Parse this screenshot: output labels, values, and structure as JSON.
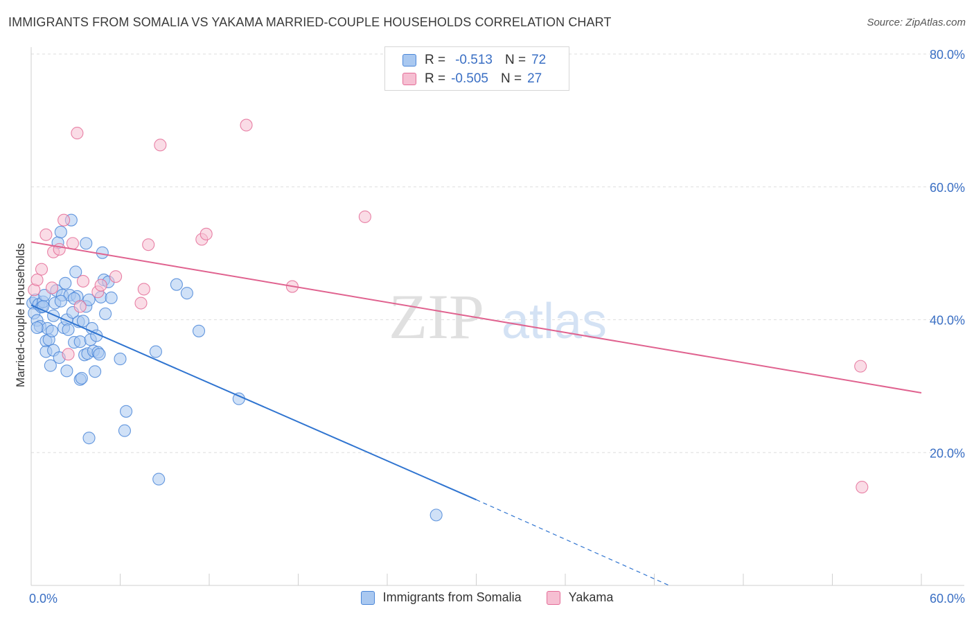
{
  "title": "IMMIGRANTS FROM SOMALIA VS YAKAMA MARRIED-COUPLE HOUSEHOLDS CORRELATION CHART",
  "source": "Source: ZipAtlas.com",
  "watermark": {
    "zip": "ZIP",
    "atlas": "atlas"
  },
  "legend": {
    "series1": {
      "r_label": "R =",
      "r_value": "-0.513",
      "n_label": "N =",
      "n_value": "72"
    },
    "series2": {
      "r_label": "R =",
      "r_value": "-0.505",
      "n_label": "N =",
      "n_value": "27"
    }
  },
  "bottom_legend": {
    "series1": "Immigrants from Somalia",
    "series2": "Yakama"
  },
  "colors": {
    "blue": "#4a86d8",
    "blue_fill": "#a9c8f0",
    "pink": "#e46c97",
    "pink_fill": "#f6bfd2",
    "tick_text": "#3a6fc4"
  },
  "chart_data": {
    "type": "scatter",
    "title": "IMMIGRANTS FROM SOMALIA VS YAKAMA MARRIED-COUPLE HOUSEHOLDS CORRELATION CHART",
    "xlabel": "",
    "ylabel": "Married-couple Households",
    "xlim": [
      0,
      60
    ],
    "ylim": [
      0,
      80
    ],
    "x_tick_labels": [
      "0.0%",
      "60.0%"
    ],
    "y_ticks": [
      20,
      40,
      60,
      80
    ],
    "y_tick_labels": [
      "20.0%",
      "40.0%",
      "60.0%",
      "80.0%"
    ],
    "series": [
      {
        "name": "Immigrants from Somalia",
        "color": "#4a86d8",
        "r": -0.513,
        "n": 72,
        "trend": {
          "x0": 0,
          "y0": 42.2,
          "x1": 30,
          "y1": 12.9,
          "dash_to_x": 43,
          "dash_to_y": 0
        },
        "points": [
          [
            0.1,
            42.5
          ],
          [
            0.2,
            41.0
          ],
          [
            0.3,
            43.0
          ],
          [
            0.4,
            39.9
          ],
          [
            0.5,
            42.3
          ],
          [
            0.6,
            39.0
          ],
          [
            0.7,
            41.9
          ],
          [
            0.8,
            42.7
          ],
          [
            0.9,
            43.7
          ],
          [
            1.0,
            36.8
          ],
          [
            1.0,
            35.2
          ],
          [
            1.1,
            38.7
          ],
          [
            1.2,
            37.0
          ],
          [
            1.3,
            33.1
          ],
          [
            1.4,
            38.3
          ],
          [
            1.5,
            35.4
          ],
          [
            1.6,
            42.5
          ],
          [
            1.7,
            44.4
          ],
          [
            1.8,
            51.6
          ],
          [
            1.9,
            34.3
          ],
          [
            2.0,
            53.2
          ],
          [
            2.1,
            43.7
          ],
          [
            2.2,
            38.8
          ],
          [
            2.3,
            45.5
          ],
          [
            2.4,
            32.3
          ],
          [
            2.4,
            40.0
          ],
          [
            2.5,
            38.5
          ],
          [
            2.6,
            43.7
          ],
          [
            2.7,
            55.0
          ],
          [
            2.8,
            41.1
          ],
          [
            2.9,
            36.6
          ],
          [
            3.0,
            47.2
          ],
          [
            3.1,
            43.5
          ],
          [
            3.2,
            39.7
          ],
          [
            3.3,
            36.7
          ],
          [
            3.3,
            31.0
          ],
          [
            3.4,
            31.2
          ],
          [
            3.5,
            39.8
          ],
          [
            3.6,
            34.7
          ],
          [
            3.7,
            42.0
          ],
          [
            3.7,
            51.5
          ],
          [
            3.8,
            34.9
          ],
          [
            3.9,
            43.0
          ],
          [
            3.9,
            22.2
          ],
          [
            4.0,
            37.0
          ],
          [
            4.1,
            38.7
          ],
          [
            4.2,
            35.3
          ],
          [
            4.3,
            32.2
          ],
          [
            4.4,
            37.6
          ],
          [
            4.5,
            35.1
          ],
          [
            4.6,
            34.8
          ],
          [
            4.7,
            43.4
          ],
          [
            4.8,
            50.1
          ],
          [
            4.9,
            46.0
          ],
          [
            5.0,
            40.9
          ],
          [
            5.2,
            45.7
          ],
          [
            5.4,
            43.3
          ],
          [
            6.0,
            34.1
          ],
          [
            6.3,
            23.3
          ],
          [
            6.4,
            26.2
          ],
          [
            8.4,
            35.2
          ],
          [
            8.6,
            16.0
          ],
          [
            9.8,
            45.3
          ],
          [
            10.5,
            44.0
          ],
          [
            11.3,
            38.3
          ],
          [
            14.0,
            28.1
          ],
          [
            27.3,
            10.6
          ],
          [
            0.4,
            38.8
          ],
          [
            0.8,
            42.0
          ],
          [
            1.5,
            40.6
          ],
          [
            2.0,
            42.8
          ],
          [
            2.9,
            43.2
          ]
        ]
      },
      {
        "name": "Yakama",
        "color": "#e46c97",
        "r": -0.505,
        "n": 27,
        "trend": {
          "x0": 0,
          "y0": 51.7,
          "x1": 60,
          "y1": 29.0
        },
        "points": [
          [
            0.2,
            44.5
          ],
          [
            0.4,
            46.0
          ],
          [
            0.7,
            47.6
          ],
          [
            1.0,
            52.8
          ],
          [
            1.4,
            44.8
          ],
          [
            1.5,
            50.2
          ],
          [
            1.9,
            50.6
          ],
          [
            2.2,
            55.0
          ],
          [
            2.5,
            34.8
          ],
          [
            2.8,
            51.5
          ],
          [
            3.1,
            68.1
          ],
          [
            3.3,
            42.0
          ],
          [
            3.5,
            45.8
          ],
          [
            4.5,
            44.2
          ],
          [
            4.7,
            45.2
          ],
          [
            5.7,
            46.5
          ],
          [
            7.4,
            42.5
          ],
          [
            7.6,
            44.6
          ],
          [
            7.9,
            51.3
          ],
          [
            8.7,
            66.3
          ],
          [
            11.5,
            52.1
          ],
          [
            11.8,
            52.9
          ],
          [
            14.5,
            69.3
          ],
          [
            17.6,
            45.0
          ],
          [
            22.5,
            55.5
          ],
          [
            55.9,
            33.0
          ],
          [
            56.0,
            14.8
          ]
        ]
      }
    ]
  }
}
